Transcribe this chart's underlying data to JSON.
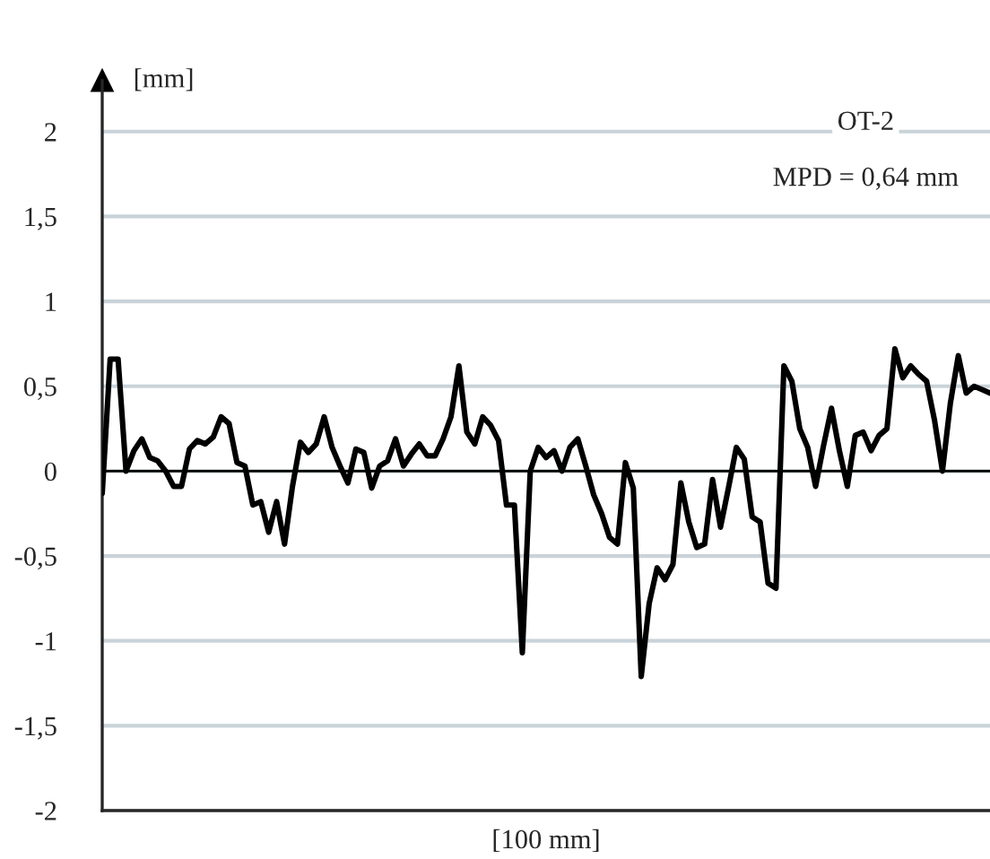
{
  "chart_data": {
    "type": "line",
    "title": "OT-2",
    "xlabel": "[100 mm]",
    "ylabel": "[mm]",
    "annotations": [
      "MPD = 0,64 mm"
    ],
    "categories": [
      null,
      null,
      null,
      null,
      null,
      null,
      null,
      null,
      null,
      null,
      null,
      null,
      null,
      null,
      null,
      null,
      null,
      null,
      null,
      null,
      null,
      null,
      null,
      null,
      null,
      null,
      null,
      null,
      null,
      null,
      null,
      null,
      null,
      null,
      null,
      null,
      null,
      null,
      null,
      null,
      null,
      null,
      null,
      null,
      null,
      null,
      null,
      null,
      null,
      null,
      null,
      null,
      null,
      null,
      null,
      null,
      null,
      null,
      null,
      null,
      null,
      null,
      null,
      null,
      null,
      null,
      null,
      null,
      null,
      null,
      null,
      null,
      null,
      null,
      null,
      null,
      null,
      null,
      null,
      null,
      null,
      null,
      null,
      null,
      null,
      null,
      null,
      null,
      null,
      null,
      null,
      null,
      null,
      null,
      null,
      null,
      null,
      null,
      null,
      null,
      null,
      null,
      null,
      null,
      null,
      null,
      null,
      null,
      null,
      null,
      null,
      null,
      null
    ],
    "series": [
      {
        "color": "#000000",
        "values": [
          -0.13,
          0.66,
          0.66,
          0,
          0.12,
          0.19,
          0.08,
          0.06,
          0.0,
          -0.09,
          -0.09,
          0.13,
          0.18,
          0.16,
          0.2,
          0.32,
          0.28,
          0.05,
          0.03,
          -0.2,
          -0.18,
          -0.36,
          -0.18,
          -0.43,
          -0.09,
          0.17,
          0.11,
          0.16,
          0.32,
          0.14,
          0.03,
          -0.07,
          0.13,
          0.11,
          -0.1,
          0.03,
          0.06,
          0.19,
          0.03,
          0.1,
          0.16,
          0.09,
          0.09,
          0.19,
          0.32,
          0.62,
          0.23,
          0.16,
          0.32,
          0.27,
          0.18,
          -0.2,
          -0.2,
          -1.07,
          0,
          0.14,
          0.08,
          0.12,
          0,
          0.14,
          0.19,
          0.03,
          -0.14,
          -0.25,
          -0.39,
          -0.43,
          0.05,
          -0.1,
          -1.21,
          -0.78,
          -0.57,
          -0.64,
          -0.55,
          -0.07,
          -0.3,
          -0.45,
          -0.43,
          -0.05,
          -0.33,
          -0.1,
          0.14,
          0.07,
          -0.27,
          -0.3,
          -0.66,
          -0.69,
          0.62,
          0.53,
          0.25,
          0.14,
          -0.09,
          0.15,
          0.37,
          0.12,
          -0.09,
          0.21,
          0.23,
          0.12,
          0.21,
          0.25,
          0.72,
          0.55,
          0.62,
          0.57,
          0.53,
          0.3,
          0,
          0.4,
          0.68,
          0.46,
          0.5,
          0.48,
          0.46
        ]
      }
    ],
    "ylim": [
      -2,
      2.3
    ],
    "yticks": [
      {
        "value": -2,
        "label": "-2"
      },
      {
        "value": -1.5,
        "label": "-1,5"
      },
      {
        "value": -1,
        "label": "-1"
      },
      {
        "value": -0.5,
        "label": "-0,5"
      },
      {
        "value": 0,
        "label": "0"
      },
      {
        "value": 0.5,
        "label": "0,5"
      },
      {
        "value": 1,
        "label": "1"
      },
      {
        "value": 1.5,
        "label": "1,5"
      },
      {
        "value": 2,
        "label": "2"
      }
    ],
    "grid": "y",
    "ref_lines": [
      {
        "axis": "y",
        "value": 0,
        "color": "#000000"
      }
    ],
    "line_style": "solid",
    "marker": "none",
    "legend": false
  }
}
